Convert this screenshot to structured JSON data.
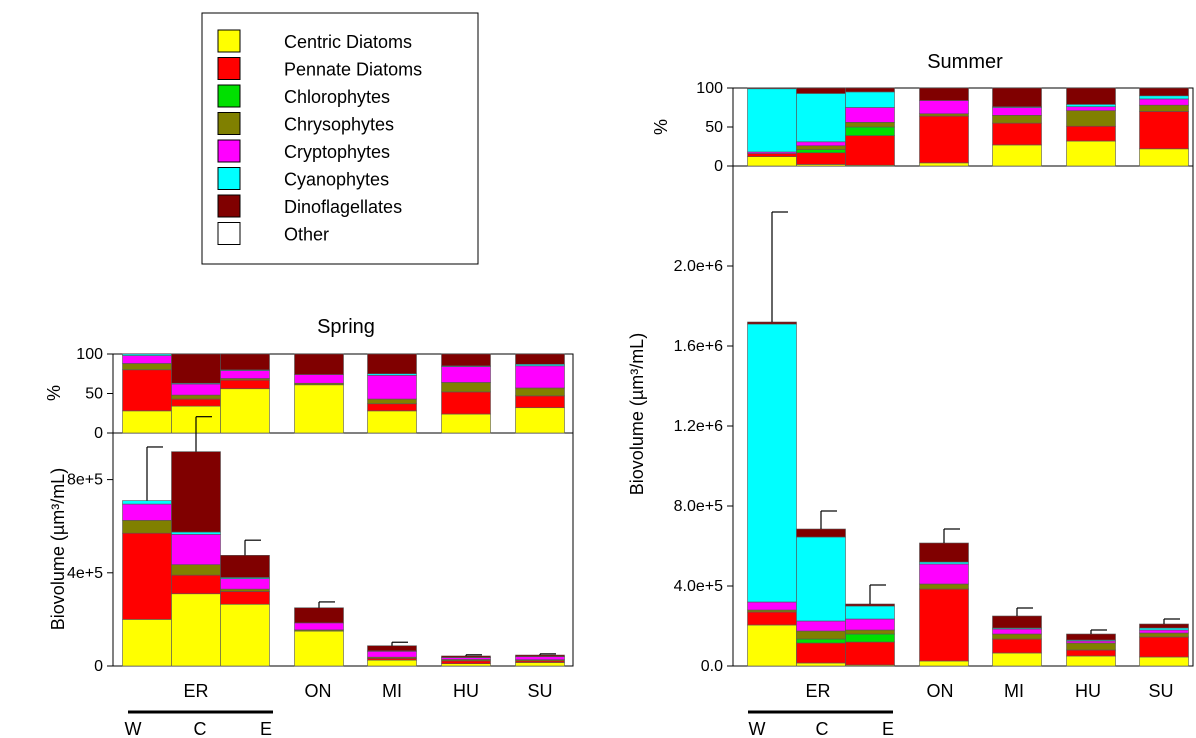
{
  "legend": {
    "entries": [
      {
        "label": "Centric Diatoms",
        "color": "#ffff00"
      },
      {
        "label": "Pennate Diatoms",
        "color": "#ff0000"
      },
      {
        "label": "Chlorophytes",
        "color": "#00e000"
      },
      {
        "label": "Chrysophytes",
        "color": "#808000"
      },
      {
        "label": "Cryptophytes",
        "color": "#ff00ff"
      },
      {
        "label": "Cyanophytes",
        "color": "#00ffff"
      },
      {
        "label": "Dinoflagellates",
        "color": "#800000"
      },
      {
        "label": "Other",
        "color": "#ffffff"
      }
    ]
  },
  "labels": {
    "percent_axis": "%",
    "biovolume_axis": "Biovolume (µm³/mL)",
    "er_group": "ER",
    "sub_w": "W",
    "sub_c": "C",
    "sub_e": "E",
    "categories": [
      "ON",
      "MI",
      "HU",
      "SU"
    ]
  },
  "chart_data": [
    {
      "type": "bar",
      "title": "Spring",
      "categories": [
        "ER-W",
        "ER-C",
        "ER-E",
        "ON",
        "MI",
        "HU",
        "SU"
      ],
      "bar_top": {
        "ylabel": "%",
        "ylim": [
          0,
          100
        ],
        "yticks": [
          "0",
          "50",
          "100"
        ],
        "series": [
          {
            "name": "Centric Diatoms",
            "values": [
              28,
              34,
              56,
              61,
              28,
              24,
              32
            ]
          },
          {
            "name": "Pennate Diatoms",
            "values": [
              52,
              9,
              11,
              0,
              9,
              28,
              15
            ]
          },
          {
            "name": "Chlorophytes",
            "values": [
              0,
              0,
              0,
              0,
              0,
              0,
              0
            ]
          },
          {
            "name": "Chrysophytes",
            "values": [
              8,
              5,
              2,
              2,
              6,
              12,
              10
            ]
          },
          {
            "name": "Cryptophytes",
            "values": [
              10,
              14,
              10,
              11,
              30,
              20,
              28
            ]
          },
          {
            "name": "Cyanophytes",
            "values": [
              2,
              1,
              1,
              0,
              2,
              1,
              2
            ]
          },
          {
            "name": "Dinoflagellates",
            "values": [
              0,
              37,
              20,
              26,
              25,
              15,
              13
            ]
          },
          {
            "name": "Other",
            "values": [
              0,
              0,
              0,
              0,
              0,
              0,
              0
            ]
          }
        ]
      },
      "bar_bottom": {
        "ylabel": "Biovolume (µm³/mL)",
        "ylim": [
          0,
          1000000
        ],
        "yticks": [
          "0",
          "4e+5",
          "8e+5"
        ],
        "series": [
          {
            "name": "Centric Diatoms",
            "values": [
              200000,
              310000,
              265000,
              150000,
              25000,
              10000,
              15000
            ]
          },
          {
            "name": "Pennate Diatoms",
            "values": [
              370000,
              80000,
              55000,
              0,
              8000,
              12000,
              7000
            ]
          },
          {
            "name": "Chlorophytes",
            "values": [
              0,
              0,
              0,
              0,
              0,
              0,
              0
            ]
          },
          {
            "name": "Chrysophytes",
            "values": [
              55000,
              45000,
              10000,
              5000,
              5000,
              6000,
              5000
            ]
          },
          {
            "name": "Cryptophytes",
            "values": [
              70000,
              130000,
              45000,
              30000,
              25000,
              8000,
              13000
            ]
          },
          {
            "name": "Cyanophytes",
            "values": [
              15000,
              10000,
              5000,
              0,
              2000,
              1000,
              1000
            ]
          },
          {
            "name": "Dinoflagellates",
            "values": [
              0,
              345000,
              95000,
              65000,
              22000,
              6000,
              6000
            ]
          },
          {
            "name": "Other",
            "values": [
              0,
              0,
              0,
              0,
              0,
              0,
              0
            ]
          }
        ],
        "error": [
          230000,
          150000,
          65000,
          25000,
          15000,
          5000,
          5000
        ]
      }
    },
    {
      "type": "bar",
      "title": "Summer",
      "categories": [
        "ER-W",
        "ER-C",
        "ER-E",
        "ON",
        "MI",
        "HU",
        "SU"
      ],
      "bar_top": {
        "ylabel": "%",
        "ylim": [
          0,
          100
        ],
        "yticks": [
          "0",
          "50",
          "100"
        ],
        "series": [
          {
            "name": "Centric Diatoms",
            "values": [
              12,
              2,
              1,
              4,
              27,
              32,
              22
            ]
          },
          {
            "name": "Pennate Diatoms",
            "values": [
              4,
              15,
              38,
              60,
              28,
              19,
              48
            ]
          },
          {
            "name": "Chlorophytes",
            "values": [
              0,
              4,
              11,
              0,
              0,
              0,
              0
            ]
          },
          {
            "name": "Chrysophytes",
            "values": [
              0,
              5,
              6,
              3,
              10,
              20,
              8
            ]
          },
          {
            "name": "Cryptophytes",
            "values": [
              2,
              5,
              19,
              17,
              10,
              5,
              8
            ]
          },
          {
            "name": "Cyanophytes",
            "values": [
              81,
              62,
              20,
              0,
              1,
              3,
              4
            ]
          },
          {
            "name": "Dinoflagellates",
            "values": [
              1,
              7,
              5,
              16,
              24,
              21,
              10
            ]
          },
          {
            "name": "Other",
            "values": [
              0,
              0,
              0,
              0,
              0,
              0,
              0
            ]
          }
        ]
      },
      "bar_bottom": {
        "ylabel": "Biovolume (µm³/mL)",
        "ylim": [
          0,
          2500000
        ],
        "yticks": [
          "0.0",
          "4.0e+5",
          "8.0e+5",
          "1.2e+6",
          "1.6e+6",
          "2.0e+6"
        ],
        "series": [
          {
            "name": "Centric Diatoms",
            "values": [
              205000,
              15000,
              5000,
              25000,
              65000,
              50000,
              45000
            ]
          },
          {
            "name": "Pennate Diatoms",
            "values": [
              65000,
              100000,
              115000,
              360000,
              70000,
              30000,
              100000
            ]
          },
          {
            "name": "Chlorophytes",
            "values": [
              0,
              20000,
              40000,
              0,
              0,
              0,
              0
            ]
          },
          {
            "name": "Chrysophytes",
            "values": [
              10000,
              40000,
              20000,
              25000,
              25000,
              35000,
              20000
            ]
          },
          {
            "name": "Cryptophytes",
            "values": [
              40000,
              50000,
              55000,
              100000,
              25000,
              10000,
              15000
            ]
          },
          {
            "name": "Cyanophytes",
            "values": [
              1390000,
              420000,
              65000,
              10000,
              5000,
              5000,
              10000
            ]
          },
          {
            "name": "Dinoflagellates",
            "values": [
              10000,
              40000,
              10000,
              95000,
              60000,
              30000,
              20000
            ]
          },
          {
            "name": "Other",
            "values": [
              0,
              0,
              0,
              0,
              0,
              0,
              0
            ]
          }
        ],
        "error": [
          550000,
          90000,
          95000,
          70000,
          40000,
          20000,
          25000
        ]
      }
    }
  ]
}
